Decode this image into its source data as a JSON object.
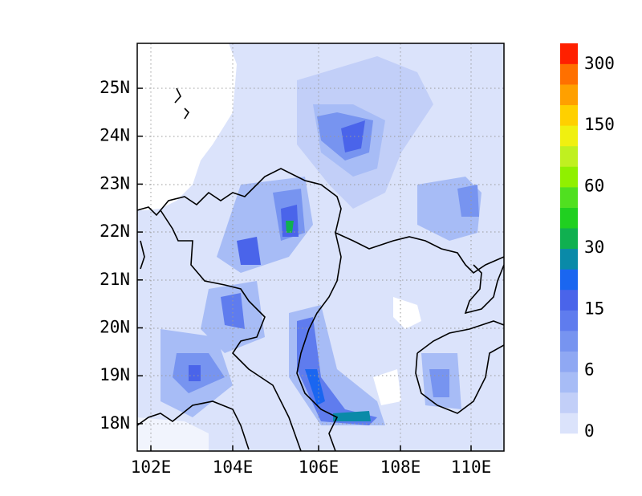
{
  "map": {
    "xtick_labels": [
      "102E",
      "104E",
      "106E",
      "108E",
      "110E"
    ],
    "ytick_labels": [
      "25N",
      "24N",
      "23N",
      "22N",
      "21N",
      "20N",
      "19N",
      "18N"
    ]
  },
  "colorbar": {
    "labels": [
      "0",
      "6",
      "15",
      "30",
      "60",
      "150",
      "300"
    ]
  }
}
